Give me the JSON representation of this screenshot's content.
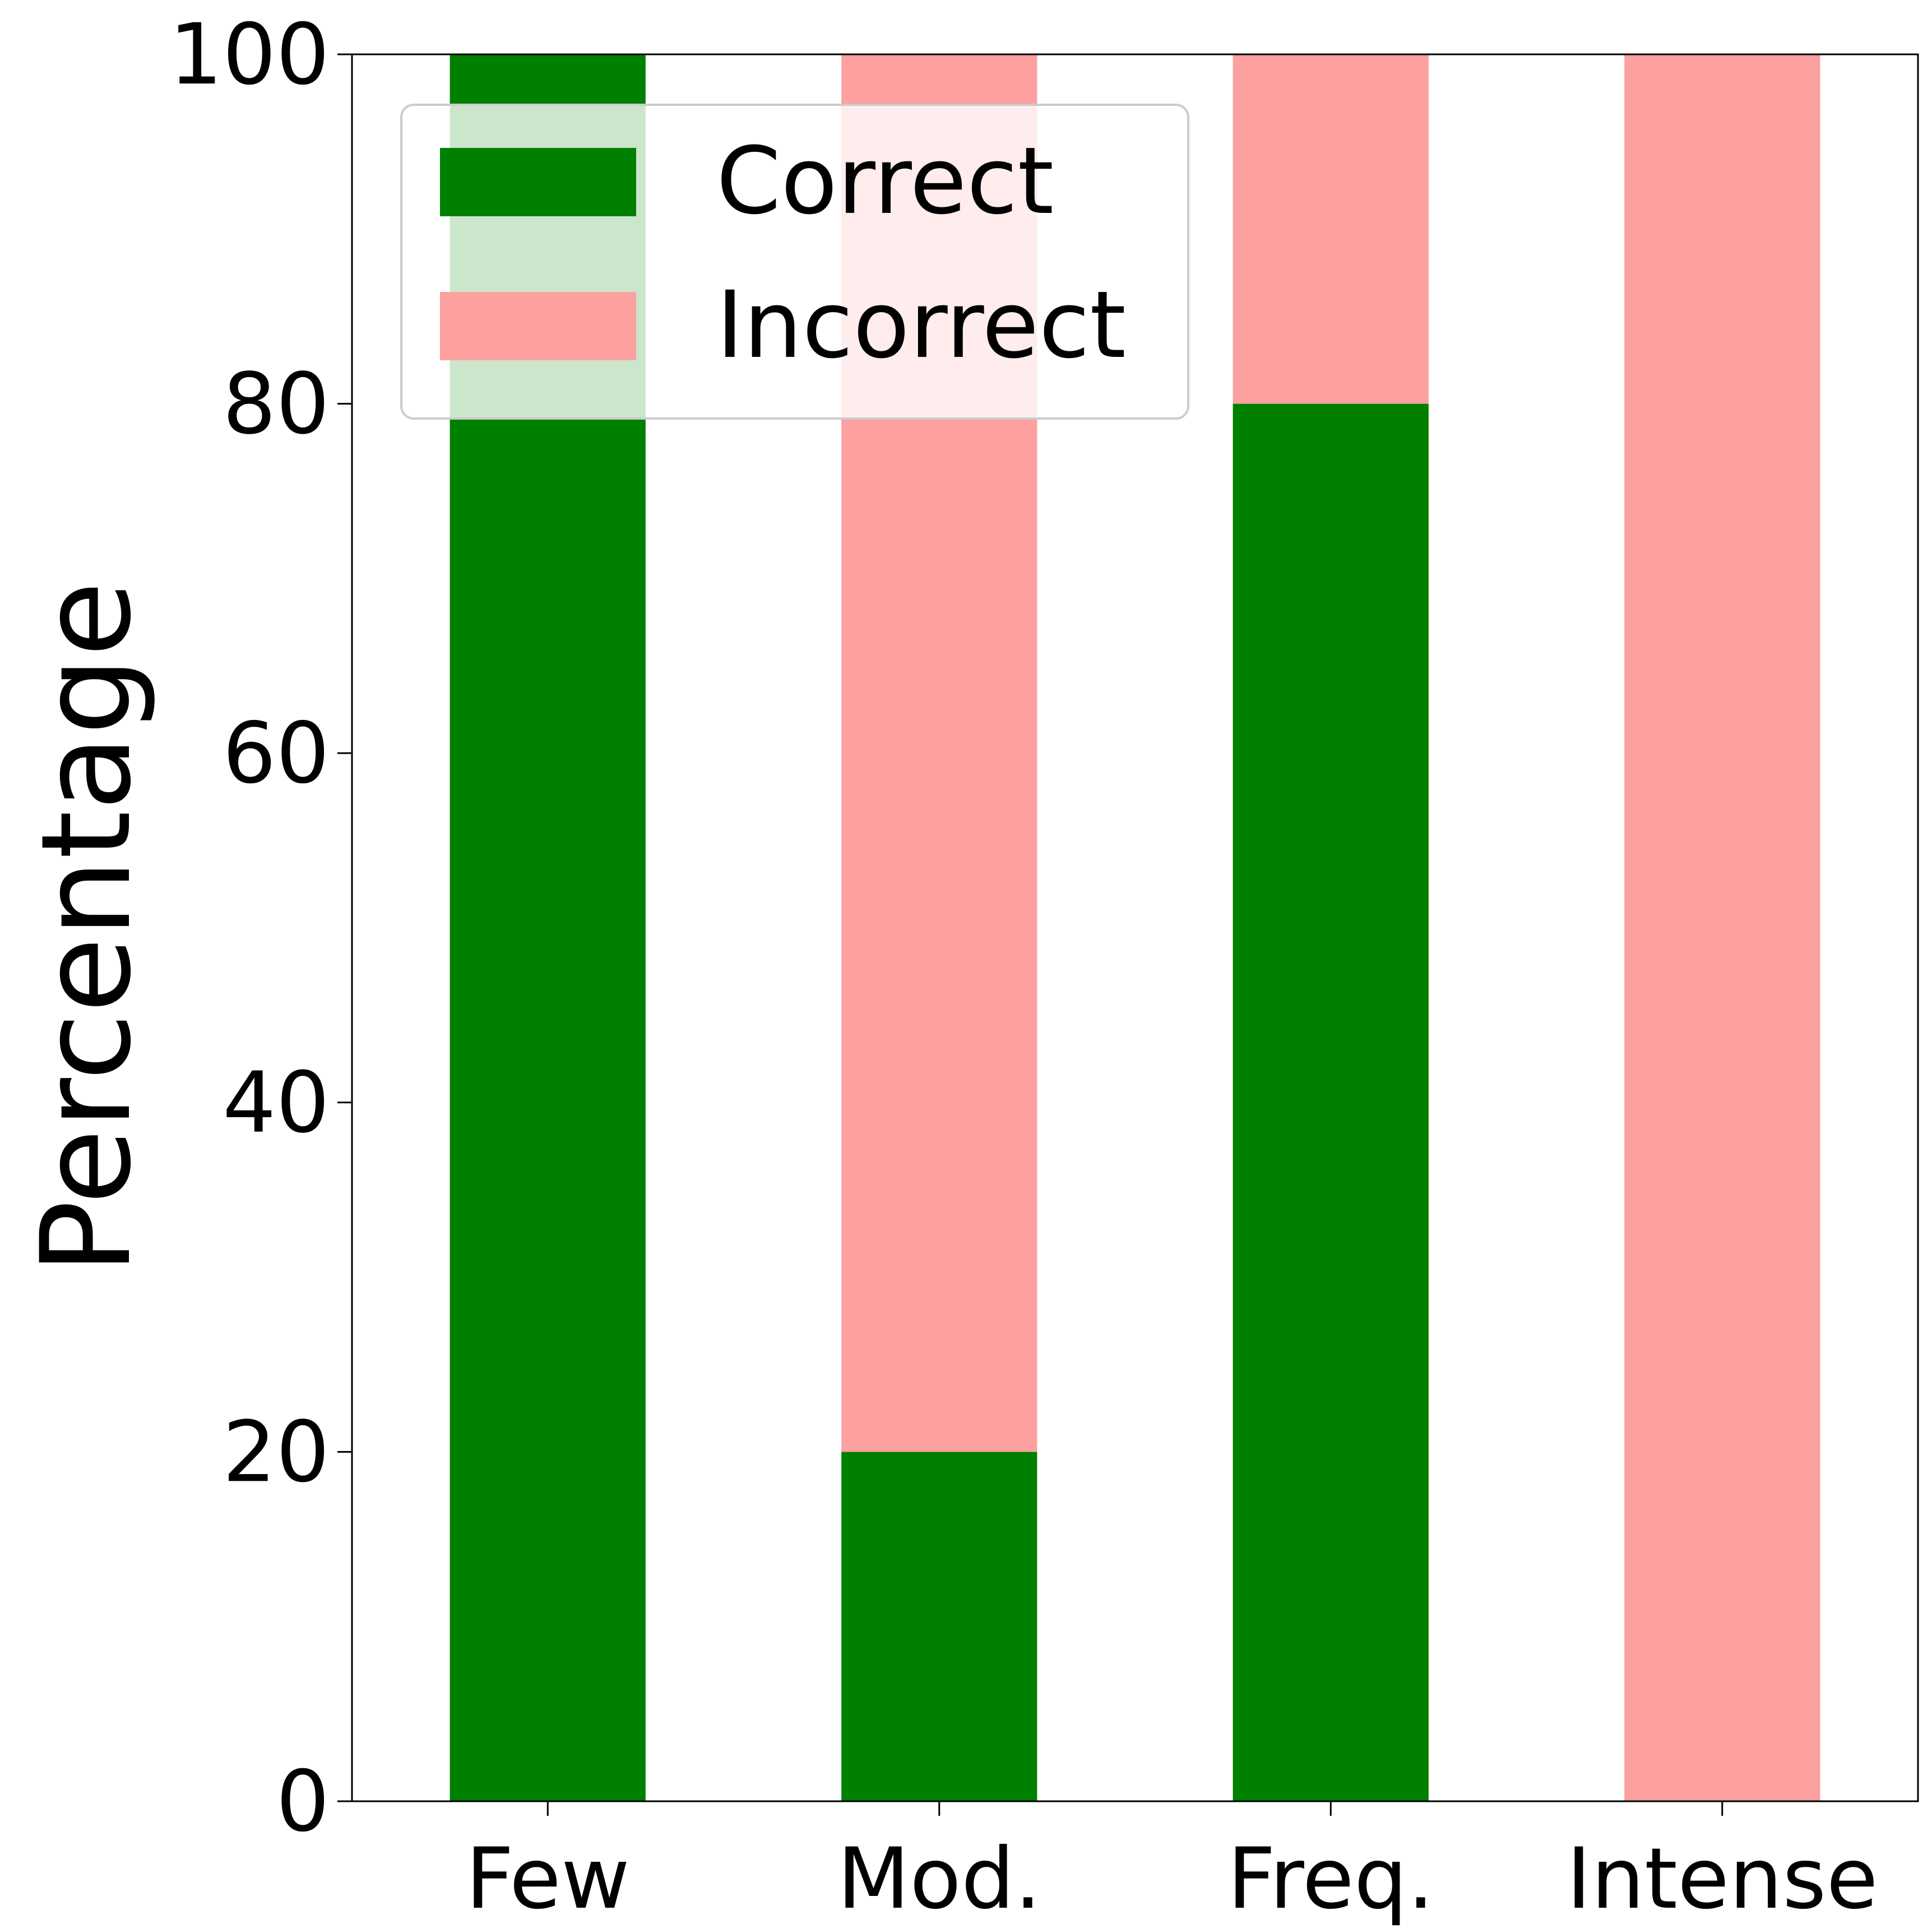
{
  "chart_data": {
    "type": "bar",
    "stacked": true,
    "categories": [
      "Few",
      "Mod.",
      "Freq.",
      "Intense"
    ],
    "series": [
      {
        "name": "Correct",
        "color": "#008000",
        "values": [
          100,
          20,
          80,
          0
        ]
      },
      {
        "name": "Incorrect",
        "color": "#fca0a0",
        "values": [
          0,
          80,
          20,
          100
        ]
      }
    ],
    "xlabel": "",
    "ylabel": "Percentage",
    "ylim": [
      0,
      100
    ],
    "yticks": [
      0,
      20,
      40,
      60,
      80,
      100
    ],
    "grid": false,
    "legend_position": "top-left"
  }
}
